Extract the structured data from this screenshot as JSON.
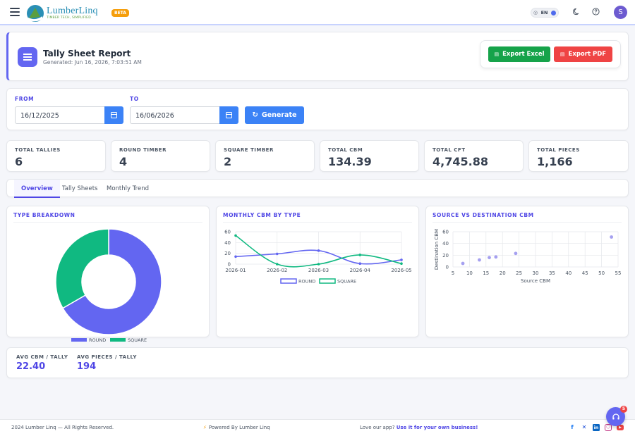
{
  "brand": {
    "name": "LumberLinq",
    "tagline": "TIMBER TECH, SIMPLIFIED",
    "badge": "BETA"
  },
  "topbar": {
    "language": "EN",
    "icons": [
      "menu-icon",
      "globe-icon",
      "moon-icon",
      "help-circle-icon"
    ],
    "avatar_initial": "S"
  },
  "header": {
    "title": "Tally Sheet Report",
    "generated": "Generated: Jun 16, 2026, 7:03:51 AM",
    "export_excel": "Export Excel",
    "export_pdf": "Export PDF"
  },
  "filters": {
    "from_label": "FROM",
    "from_value": "16/12/2025",
    "to_label": "TO",
    "to_value": "16/06/2026",
    "generate_label": "Generate"
  },
  "stats": [
    {
      "label": "TOTAL TALLIES",
      "value": "6"
    },
    {
      "label": "ROUND TIMBER",
      "value": "4"
    },
    {
      "label": "SQUARE TIMBER",
      "value": "2"
    },
    {
      "label": "TOTAL CBM",
      "value": "134.39"
    },
    {
      "label": "TOTAL CFT",
      "value": "4,745.88"
    },
    {
      "label": "TOTAL PIECES",
      "value": "1,166"
    }
  ],
  "tabs": [
    {
      "label": "Overview",
      "active": true
    },
    {
      "label": "Tally Sheets",
      "active": false
    },
    {
      "label": "Monthly Trend",
      "active": false
    }
  ],
  "charts": {
    "type_breakdown_title": "TYPE BREAKDOWN",
    "monthly_title": "MONTHLY CBM BY TYPE",
    "scatter_title": "SOURCE VS DESTINATION CBM"
  },
  "colors": {
    "round": "#6366f1",
    "square": "#10b981",
    "scatter": "#a5a0f0",
    "accent": "#4f46e5"
  },
  "chart_data": [
    {
      "type": "pie",
      "title": "TYPE BREAKDOWN",
      "categories": [
        "ROUND",
        "SQUARE"
      ],
      "values": [
        4,
        2
      ],
      "legend": "bottom"
    },
    {
      "type": "line",
      "title": "MONTHLY CBM BY TYPE",
      "categories": [
        "2026-01",
        "2026-02",
        "2026-03",
        "2026-04",
        "2026-05"
      ],
      "series": [
        {
          "name": "ROUND",
          "values": [
            14,
            19,
            25,
            1,
            8
          ]
        },
        {
          "name": "SQUARE",
          "values": [
            53,
            0,
            0,
            17,
            1
          ]
        }
      ],
      "yticks": [
        0,
        20,
        40,
        60
      ],
      "ylim": [
        0,
        60
      ],
      "grid": true,
      "legend": "bottom"
    },
    {
      "type": "scatter",
      "title": "SOURCE VS DESTINATION CBM",
      "xlabel": "Source CBM",
      "ylabel": "Destination CBM",
      "x": [
        8,
        13,
        16,
        18,
        24,
        53
      ],
      "y": [
        6,
        12,
        16,
        17,
        23,
        51
      ],
      "xticks": [
        5,
        10,
        15,
        20,
        25,
        30,
        35,
        40,
        45,
        50,
        55
      ],
      "yticks": [
        0,
        20,
        40,
        60
      ],
      "xlim": [
        5,
        55
      ],
      "ylim": [
        0,
        60
      ],
      "grid": true
    }
  ],
  "averages": [
    {
      "label": "AVG CBM / TALLY",
      "value": "22.40"
    },
    {
      "label": "AVG PIECES / TALLY",
      "value": "194"
    }
  ],
  "footer": {
    "copyright": "2024 Lumber Linq — All Rights Reserved.",
    "powered": "Powered By Lumber Linq",
    "love_text": "Love our app?",
    "love_link": "Use it for your own business!",
    "social": [
      "facebook-icon",
      "x-icon",
      "linkedin-icon",
      "instagram-icon",
      "youtube-icon"
    ]
  },
  "help": {
    "badge": "5"
  }
}
